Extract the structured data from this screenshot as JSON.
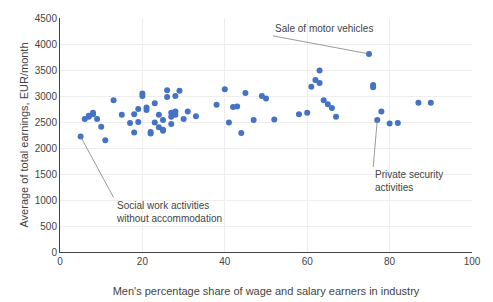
{
  "chart_data": {
    "type": "scatter",
    "x": [
      5,
      6,
      7,
      7,
      8,
      8,
      9,
      10,
      11,
      13,
      15,
      17,
      18,
      18,
      19,
      19,
      20,
      20,
      21,
      21,
      22,
      22,
      23,
      23,
      24,
      24,
      25,
      25,
      25,
      26,
      26,
      27,
      27,
      27,
      28,
      28,
      28,
      29,
      30,
      31,
      33,
      38,
      40,
      41,
      42,
      43,
      44,
      45,
      47,
      49,
      50,
      52,
      58,
      60,
      61,
      62,
      63,
      63,
      64,
      65,
      66,
      67,
      75,
      76,
      76,
      77,
      78,
      80,
      82,
      87,
      90
    ],
    "values": [
      2220,
      2560,
      2620,
      2600,
      2650,
      2680,
      2560,
      2410,
      2150,
      2920,
      2640,
      2480,
      2300,
      2650,
      2750,
      2500,
      3050,
      3000,
      2780,
      2730,
      2310,
      2280,
      2860,
      2490,
      2640,
      2400,
      2540,
      2350,
      2330,
      3110,
      2980,
      2680,
      2600,
      2460,
      3000,
      2700,
      2640,
      3100,
      2560,
      2700,
      2610,
      2830,
      3130,
      2490,
      2790,
      2800,
      2290,
      3060,
      2540,
      3000,
      2950,
      2550,
      2650,
      2680,
      3180,
      3310,
      3490,
      3250,
      2920,
      2840,
      2770,
      2600,
      3810,
      3210,
      3170,
      2540,
      2700,
      2470,
      2480,
      2870,
      2870
    ],
    "color": "#4472C4",
    "xlabel": "Men's percentage share of wage and salary earners in industry",
    "ylabel": "Average of total earnings, EUR/month",
    "xlim": [
      0,
      100
    ],
    "ylim": [
      0,
      4500
    ],
    "xticks": [
      0,
      20,
      40,
      60,
      80,
      100
    ],
    "yticks": [
      0,
      500,
      1000,
      1500,
      2000,
      2500,
      3000,
      3500,
      4000,
      4500
    ],
    "grid": true,
    "annotations": [
      {
        "text": "Sale of motor vehicles",
        "x": 75,
        "y": 3810
      },
      {
        "text": "Social work activities\nwithout accommodation",
        "x": 5,
        "y": 2220
      },
      {
        "text": "Private security\nactivities",
        "x": 77,
        "y": 2540
      }
    ]
  }
}
